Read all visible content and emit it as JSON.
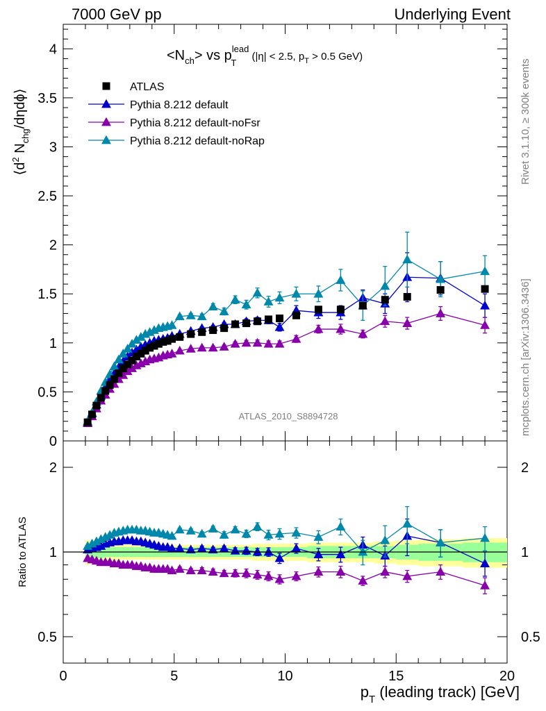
{
  "header": {
    "left": "7000 GeV pp",
    "right": "Underlying Event"
  },
  "side_labels": {
    "rivet": "Rivet 3.1.10, ≥ 300k events",
    "mcplots": "mcplots.cern.ch [arXiv:1306.3436]"
  },
  "chart_data": [
    {
      "type": "scatter",
      "title": "<N_ch> vs p_T^lead (|η| < 2.5, p_T > 0.5 GeV)",
      "title_parts": {
        "main_a": "<N",
        "main_sub": "ch",
        "main_b": "> vs p",
        "sup": "lead",
        "sub_t": "T",
        "cond_a": " (|η| < 2.5, p",
        "cond_sub": "T",
        "cond_b": " > 0.5 GeV)"
      },
      "ylabel": "⟨d² N_chg/dηdϕ⟩",
      "ylabel_parts": {
        "a": "⟨d",
        "sup": "2",
        "b": " N",
        "sub": "chg",
        "c": "/dηdϕ⟩"
      },
      "xlim": [
        0,
        20
      ],
      "ylim": [
        0,
        4.25
      ],
      "yticks": [
        "0",
        "0.5",
        "1",
        "1.5",
        "2",
        "2.5",
        "3",
        "3.5",
        "4"
      ],
      "watermark": "ATLAS_2010_S8894728",
      "legend_position": "top-left",
      "grid": false,
      "series": [
        {
          "name": "ATLAS",
          "marker": "square",
          "color": "#000000",
          "x": [
            1.1,
            1.3,
            1.5,
            1.7,
            1.9,
            2.1,
            2.3,
            2.5,
            2.7,
            2.9,
            3.1,
            3.3,
            3.5,
            3.7,
            3.9,
            4.1,
            4.3,
            4.5,
            4.7,
            4.9,
            5.25,
            5.75,
            6.25,
            6.75,
            7.25,
            7.75,
            8.25,
            8.75,
            9.25,
            9.75,
            10.5,
            11.5,
            12.5,
            13.5,
            14.5,
            15.5,
            17.0,
            19.0
          ],
          "y": [
            0.19,
            0.27,
            0.36,
            0.44,
            0.51,
            0.57,
            0.63,
            0.69,
            0.74,
            0.78,
            0.82,
            0.86,
            0.89,
            0.92,
            0.95,
            0.97,
            0.99,
            1.01,
            1.02,
            1.04,
            1.06,
            1.09,
            1.11,
            1.13,
            1.15,
            1.19,
            1.2,
            1.22,
            1.24,
            1.25,
            1.28,
            1.34,
            1.34,
            1.38,
            1.44,
            1.47,
            1.54,
            1.55
          ]
        },
        {
          "name": "Pythia 8.212 default",
          "marker": "triangle",
          "color": "#0000cc",
          "x": [
            1.1,
            1.3,
            1.5,
            1.7,
            1.9,
            2.1,
            2.3,
            2.5,
            2.7,
            2.9,
            3.1,
            3.3,
            3.5,
            3.7,
            3.9,
            4.1,
            4.3,
            4.5,
            4.7,
            4.9,
            5.25,
            5.75,
            6.25,
            6.75,
            7.25,
            7.75,
            8.25,
            8.75,
            9.25,
            9.75,
            10.5,
            11.5,
            12.5,
            13.5,
            14.5,
            15.5,
            17.0,
            19.0
          ],
          "y": [
            0.19,
            0.28,
            0.37,
            0.46,
            0.55,
            0.62,
            0.69,
            0.75,
            0.81,
            0.86,
            0.9,
            0.93,
            0.96,
            0.98,
            1.0,
            1.02,
            1.03,
            1.04,
            1.05,
            1.07,
            1.09,
            1.12,
            1.15,
            1.16,
            1.19,
            1.19,
            1.22,
            1.23,
            1.23,
            1.16,
            1.33,
            1.31,
            1.31,
            1.46,
            1.4,
            1.67,
            1.66,
            1.38
          ],
          "yerr": [
            0.005,
            0.005,
            0.005,
            0.005,
            0.005,
            0.005,
            0.005,
            0.005,
            0.005,
            0.005,
            0.005,
            0.006,
            0.006,
            0.006,
            0.006,
            0.007,
            0.007,
            0.008,
            0.008,
            0.009,
            0.01,
            0.012,
            0.014,
            0.016,
            0.018,
            0.02,
            0.025,
            0.03,
            0.035,
            0.04,
            0.05,
            0.06,
            0.07,
            0.08,
            0.1,
            0.25,
            0.17,
            0.12
          ]
        },
        {
          "name": "Pythia 8.212 default-noFsr",
          "marker": "triangle",
          "color": "#8800aa",
          "x": [
            1.1,
            1.3,
            1.5,
            1.7,
            1.9,
            2.1,
            2.3,
            2.5,
            2.7,
            2.9,
            3.1,
            3.3,
            3.5,
            3.7,
            3.9,
            4.1,
            4.3,
            4.5,
            4.7,
            4.9,
            5.25,
            5.75,
            6.25,
            6.75,
            7.25,
            7.75,
            8.25,
            8.75,
            9.25,
            9.75,
            10.5,
            11.5,
            12.5,
            13.5,
            14.5,
            15.5,
            17.0,
            19.0
          ],
          "y": [
            0.18,
            0.25,
            0.33,
            0.41,
            0.47,
            0.53,
            0.58,
            0.63,
            0.67,
            0.71,
            0.74,
            0.77,
            0.79,
            0.81,
            0.83,
            0.84,
            0.85,
            0.87,
            0.88,
            0.89,
            0.92,
            0.94,
            0.95,
            0.95,
            0.96,
            0.99,
            1.0,
            1.0,
            0.99,
            0.99,
            1.04,
            1.14,
            1.14,
            1.09,
            1.22,
            1.2,
            1.3,
            1.18
          ],
          "yerr": [
            0.005,
            0.005,
            0.005,
            0.005,
            0.005,
            0.005,
            0.005,
            0.005,
            0.005,
            0.005,
            0.005,
            0.006,
            0.006,
            0.006,
            0.006,
            0.007,
            0.007,
            0.008,
            0.008,
            0.009,
            0.01,
            0.012,
            0.014,
            0.016,
            0.018,
            0.02,
            0.025,
            0.03,
            0.03,
            0.03,
            0.035,
            0.04,
            0.05,
            0.04,
            0.06,
            0.06,
            0.07,
            0.08
          ]
        },
        {
          "name": "Pythia 8.212 default-noRap",
          "marker": "triangle",
          "color": "#0088aa",
          "x": [
            1.1,
            1.3,
            1.5,
            1.7,
            1.9,
            2.1,
            2.3,
            2.5,
            2.7,
            2.9,
            3.1,
            3.3,
            3.5,
            3.7,
            3.9,
            4.1,
            4.3,
            4.5,
            4.7,
            4.9,
            5.25,
            5.75,
            6.25,
            6.75,
            7.25,
            7.75,
            8.25,
            8.75,
            9.25,
            9.75,
            10.5,
            11.5,
            12.5,
            13.5,
            14.5,
            15.5,
            17.0,
            19.0
          ],
          "y": [
            0.2,
            0.29,
            0.4,
            0.51,
            0.6,
            0.68,
            0.76,
            0.83,
            0.89,
            0.94,
            0.99,
            1.03,
            1.06,
            1.09,
            1.11,
            1.13,
            1.15,
            1.16,
            1.17,
            1.18,
            1.27,
            1.28,
            1.27,
            1.37,
            1.32,
            1.44,
            1.39,
            1.51,
            1.42,
            1.46,
            1.5,
            1.5,
            1.64,
            1.38,
            1.58,
            1.85,
            1.65,
            1.73
          ],
          "yerr": [
            0.005,
            0.005,
            0.005,
            0.005,
            0.005,
            0.005,
            0.005,
            0.005,
            0.006,
            0.006,
            0.006,
            0.007,
            0.007,
            0.008,
            0.008,
            0.009,
            0.01,
            0.01,
            0.011,
            0.012,
            0.015,
            0.02,
            0.025,
            0.03,
            0.035,
            0.04,
            0.045,
            0.05,
            0.055,
            0.06,
            0.07,
            0.08,
            0.11,
            0.15,
            0.2,
            0.28,
            0.18,
            0.16
          ]
        }
      ]
    },
    {
      "type": "scatter",
      "ylabel": "Ratio to ATLAS",
      "xlabel": "p_T (leading track) [GeV]",
      "xlabel_parts": {
        "a": "p",
        "sub": "T",
        "b": " (leading track) [GeV]"
      },
      "xlim": [
        0,
        20
      ],
      "ylim": [
        0.35,
        2.25
      ],
      "xticks": [
        "0",
        "5",
        "10",
        "15",
        "20"
      ],
      "yticks": [
        "0.5",
        "1",
        "2"
      ],
      "reference_line": 1,
      "bands": {
        "x_edges": [
          1.0,
          1.2,
          1.4,
          1.6,
          1.8,
          2.0,
          2.2,
          2.4,
          2.6,
          2.8,
          3.0,
          3.2,
          3.4,
          3.6,
          3.8,
          4.0,
          4.2,
          4.4,
          4.6,
          4.8,
          5.0,
          5.5,
          6.0,
          6.5,
          7.0,
          7.5,
          8.0,
          8.5,
          9.0,
          9.5,
          10.0,
          11.0,
          12.0,
          13.0,
          14.0,
          15.0,
          16.0,
          18.0,
          20.0
        ],
        "stat_halfwidth": [
          0.06,
          0.05,
          0.05,
          0.05,
          0.04,
          0.04,
          0.04,
          0.04,
          0.04,
          0.04,
          0.04,
          0.04,
          0.04,
          0.04,
          0.04,
          0.04,
          0.04,
          0.04,
          0.04,
          0.04,
          0.04,
          0.04,
          0.04,
          0.04,
          0.04,
          0.04,
          0.04,
          0.04,
          0.04,
          0.04,
          0.04,
          0.05,
          0.05,
          0.05,
          0.05,
          0.06,
          0.07,
          0.08
        ],
        "total_halfwidth": [
          0.1,
          0.09,
          0.08,
          0.08,
          0.07,
          0.07,
          0.07,
          0.07,
          0.06,
          0.06,
          0.06,
          0.06,
          0.06,
          0.06,
          0.06,
          0.06,
          0.06,
          0.06,
          0.06,
          0.06,
          0.06,
          0.06,
          0.06,
          0.06,
          0.06,
          0.06,
          0.06,
          0.07,
          0.07,
          0.07,
          0.07,
          0.08,
          0.08,
          0.08,
          0.09,
          0.1,
          0.11,
          0.12
        ],
        "stat_color": "#99ff99",
        "total_color": "#ffff99"
      },
      "series": [
        {
          "name": "Pythia 8.212 default",
          "color": "#0000cc",
          "x": [
            1.1,
            1.3,
            1.5,
            1.7,
            1.9,
            2.1,
            2.3,
            2.5,
            2.7,
            2.9,
            3.1,
            3.3,
            3.5,
            3.7,
            3.9,
            4.1,
            4.3,
            4.5,
            4.7,
            4.9,
            5.25,
            5.75,
            6.25,
            6.75,
            7.25,
            7.75,
            8.25,
            8.75,
            9.25,
            9.75,
            10.5,
            11.5,
            12.5,
            13.5,
            14.5,
            15.5,
            17.0,
            19.0
          ],
          "y": [
            1.02,
            1.03,
            1.04,
            1.05,
            1.07,
            1.08,
            1.09,
            1.09,
            1.1,
            1.1,
            1.1,
            1.09,
            1.09,
            1.08,
            1.07,
            1.06,
            1.05,
            1.04,
            1.04,
            1.03,
            1.03,
            1.02,
            1.03,
            1.02,
            1.03,
            1.01,
            1.01,
            1.0,
            1.0,
            0.95,
            1.03,
            0.98,
            0.98,
            1.06,
            0.97,
            1.14,
            1.08,
            0.91
          ],
          "yerr": [
            0.01,
            0.01,
            0.01,
            0.01,
            0.01,
            0.01,
            0.01,
            0.01,
            0.01,
            0.01,
            0.01,
            0.01,
            0.01,
            0.01,
            0.01,
            0.01,
            0.01,
            0.01,
            0.01,
            0.01,
            0.015,
            0.015,
            0.02,
            0.02,
            0.02,
            0.025,
            0.03,
            0.03,
            0.035,
            0.04,
            0.04,
            0.05,
            0.06,
            0.07,
            0.08,
            0.17,
            0.12,
            0.09
          ]
        },
        {
          "name": "Pythia 8.212 default-noFsr",
          "color": "#8800aa",
          "x": [
            1.1,
            1.3,
            1.5,
            1.7,
            1.9,
            2.1,
            2.3,
            2.5,
            2.7,
            2.9,
            3.1,
            3.3,
            3.5,
            3.7,
            3.9,
            4.1,
            4.3,
            4.5,
            4.7,
            4.9,
            5.25,
            5.75,
            6.25,
            6.75,
            7.25,
            7.75,
            8.25,
            8.75,
            9.25,
            9.75,
            10.5,
            11.5,
            12.5,
            13.5,
            14.5,
            15.5,
            17.0,
            19.0
          ],
          "y": [
            0.95,
            0.94,
            0.93,
            0.92,
            0.92,
            0.92,
            0.91,
            0.91,
            0.9,
            0.9,
            0.9,
            0.89,
            0.89,
            0.88,
            0.88,
            0.87,
            0.87,
            0.87,
            0.87,
            0.86,
            0.87,
            0.86,
            0.86,
            0.85,
            0.84,
            0.84,
            0.84,
            0.83,
            0.82,
            0.8,
            0.82,
            0.85,
            0.85,
            0.79,
            0.85,
            0.82,
            0.85,
            0.76
          ],
          "yerr": [
            0.01,
            0.01,
            0.01,
            0.01,
            0.01,
            0.01,
            0.01,
            0.01,
            0.01,
            0.01,
            0.01,
            0.01,
            0.01,
            0.01,
            0.01,
            0.01,
            0.01,
            0.01,
            0.01,
            0.01,
            0.015,
            0.015,
            0.02,
            0.02,
            0.02,
            0.025,
            0.03,
            0.03,
            0.03,
            0.03,
            0.03,
            0.035,
            0.04,
            0.03,
            0.04,
            0.04,
            0.05,
            0.05
          ]
        },
        {
          "name": "Pythia 8.212 default-noRap",
          "color": "#0088aa",
          "x": [
            1.1,
            1.3,
            1.5,
            1.7,
            1.9,
            2.1,
            2.3,
            2.5,
            2.7,
            2.9,
            3.1,
            3.3,
            3.5,
            3.7,
            3.9,
            4.1,
            4.3,
            4.5,
            4.7,
            4.9,
            5.25,
            5.75,
            6.25,
            6.75,
            7.25,
            7.75,
            8.25,
            8.75,
            9.25,
            9.75,
            10.5,
            11.5,
            12.5,
            13.5,
            14.5,
            15.5,
            17.0,
            19.0
          ],
          "y": [
            1.05,
            1.07,
            1.09,
            1.11,
            1.13,
            1.15,
            1.17,
            1.18,
            1.19,
            1.2,
            1.2,
            1.2,
            1.19,
            1.19,
            1.18,
            1.17,
            1.17,
            1.16,
            1.15,
            1.14,
            1.2,
            1.19,
            1.16,
            1.21,
            1.15,
            1.2,
            1.16,
            1.23,
            1.15,
            1.16,
            1.17,
            1.13,
            1.23,
            1.0,
            1.1,
            1.26,
            1.08,
            1.12
          ],
          "yerr": [
            0.01,
            0.01,
            0.01,
            0.01,
            0.01,
            0.01,
            0.01,
            0.01,
            0.01,
            0.01,
            0.01,
            0.01,
            0.01,
            0.01,
            0.01,
            0.01,
            0.01,
            0.01,
            0.01,
            0.01,
            0.015,
            0.02,
            0.02,
            0.025,
            0.03,
            0.03,
            0.035,
            0.04,
            0.045,
            0.05,
            0.05,
            0.06,
            0.08,
            0.1,
            0.14,
            0.19,
            0.12,
            0.11
          ]
        }
      ]
    }
  ]
}
